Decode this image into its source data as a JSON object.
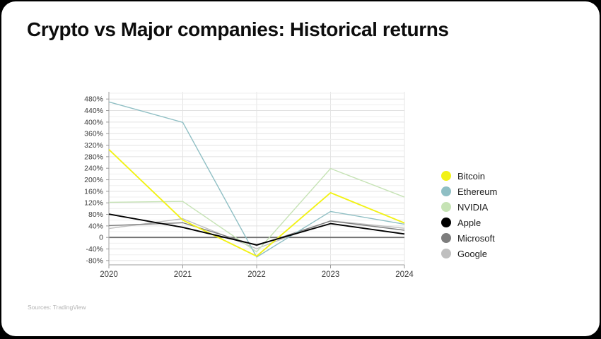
{
  "card": {
    "title": "Crypto vs Major companies: Historical returns",
    "source_note": "Sources: TradingView",
    "background": "#ffffff",
    "page_background": "#000000"
  },
  "chart_data": {
    "type": "line",
    "title": "Crypto vs Major companies: Historical returns",
    "xlabel": "",
    "ylabel": "",
    "x_labels": [
      "2020",
      "2021",
      "2022",
      "2023",
      "2024"
    ],
    "y_tick_labels": [
      "480%",
      "440%",
      "400%",
      "360%",
      "320%",
      "280%",
      "240%",
      "200%",
      "160%",
      "120%",
      "80%",
      "40%",
      "0",
      "-40%",
      "-80%"
    ],
    "y_tick_values": [
      480,
      440,
      400,
      360,
      320,
      280,
      240,
      200,
      160,
      120,
      80,
      40,
      0,
      -40,
      -80
    ],
    "ylim": [
      -95,
      505
    ],
    "grid": true,
    "minor_grid_step_pct": 20,
    "legend_position": "right",
    "zero_line": true,
    "series": [
      {
        "name": "Bitcoin",
        "color": "#f2f215",
        "values": [
          305,
          60,
          -65,
          155,
          50
        ]
      },
      {
        "name": "Ethereum",
        "color": "#8fbfc4",
        "values": [
          470,
          399,
          -68,
          90,
          46
        ]
      },
      {
        "name": "NVIDIA",
        "color": "#c6e3b5",
        "values": [
          122,
          125,
          -50,
          239,
          140
        ]
      },
      {
        "name": "Apple",
        "color": "#000000",
        "values": [
          81,
          35,
          -26,
          48,
          12
        ]
      },
      {
        "name": "Microsoft",
        "color": "#7d7d7d",
        "values": [
          41,
          51,
          -28,
          57,
          25
        ]
      },
      {
        "name": "Google",
        "color": "#bfbfbf",
        "values": [
          31,
          65,
          -39,
          58,
          32
        ]
      }
    ]
  }
}
